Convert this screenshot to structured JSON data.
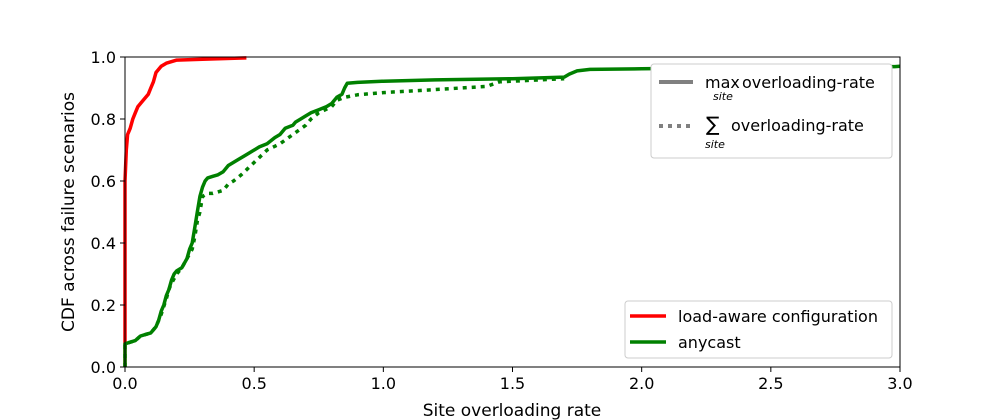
{
  "chart_data": {
    "type": "line",
    "title": "",
    "xlabel": "Site overloading rate",
    "ylabel": "CDF across failure scenarios",
    "xlim": [
      0.0,
      3.0
    ],
    "ylim": [
      0.0,
      1.0
    ],
    "xticks": [
      0.0,
      0.5,
      1.0,
      1.5,
      2.0,
      2.5,
      3.0
    ],
    "yticks": [
      0.0,
      0.2,
      0.4,
      0.6,
      0.8,
      1.0
    ],
    "xtick_labels": [
      "0.0",
      "0.5",
      "1.0",
      "1.5",
      "2.0",
      "2.5",
      "3.0"
    ],
    "ytick_labels": [
      "0.0",
      "0.2",
      "0.4",
      "0.6",
      "0.8",
      "1.0"
    ],
    "grid": false,
    "series": [
      {
        "name": "load-aware configuration",
        "color": "#ff0000",
        "style": "solid",
        "x": [
          0.0,
          0.0,
          0.005,
          0.008,
          0.01,
          0.015,
          0.02,
          0.03,
          0.04,
          0.05,
          0.06,
          0.07,
          0.09,
          0.1,
          0.11,
          0.12,
          0.13,
          0.14,
          0.16,
          0.2,
          0.3,
          0.47
        ],
        "y": [
          0.0,
          0.6,
          0.7,
          0.73,
          0.75,
          0.76,
          0.77,
          0.8,
          0.82,
          0.84,
          0.85,
          0.86,
          0.88,
          0.9,
          0.92,
          0.95,
          0.96,
          0.97,
          0.98,
          0.99,
          0.993,
          0.997
        ]
      },
      {
        "name": "anycast",
        "color": "#008000",
        "style": "solid",
        "x": [
          0.0,
          0.0,
          0.02,
          0.04,
          0.06,
          0.08,
          0.1,
          0.12,
          0.13,
          0.14,
          0.15,
          0.16,
          0.17,
          0.18,
          0.19,
          0.2,
          0.22,
          0.24,
          0.25,
          0.26,
          0.27,
          0.28,
          0.29,
          0.3,
          0.31,
          0.32,
          0.34,
          0.36,
          0.38,
          0.4,
          0.42,
          0.44,
          0.46,
          0.48,
          0.5,
          0.52,
          0.55,
          0.58,
          0.6,
          0.62,
          0.65,
          0.66,
          0.68,
          0.7,
          0.72,
          0.75,
          0.78,
          0.8,
          0.82,
          0.84,
          0.85,
          0.86,
          0.9,
          1.0,
          1.2,
          1.5,
          1.7,
          1.72,
          1.75,
          1.8,
          2.0,
          2.3,
          2.6,
          2.9,
          2.98,
          3.0
        ],
        "y": [
          0.0,
          0.075,
          0.08,
          0.085,
          0.1,
          0.105,
          0.11,
          0.13,
          0.15,
          0.18,
          0.2,
          0.23,
          0.25,
          0.28,
          0.3,
          0.31,
          0.32,
          0.35,
          0.38,
          0.4,
          0.45,
          0.5,
          0.55,
          0.58,
          0.6,
          0.61,
          0.615,
          0.62,
          0.63,
          0.65,
          0.66,
          0.67,
          0.68,
          0.69,
          0.7,
          0.71,
          0.72,
          0.74,
          0.75,
          0.77,
          0.78,
          0.79,
          0.8,
          0.81,
          0.82,
          0.83,
          0.84,
          0.85,
          0.87,
          0.88,
          0.9,
          0.915,
          0.918,
          0.922,
          0.926,
          0.93,
          0.935,
          0.945,
          0.955,
          0.96,
          0.962,
          0.965,
          0.967,
          0.968,
          0.969,
          0.97
        ]
      },
      {
        "name": "anycast (sum)",
        "color": "#008000",
        "style": "dotted",
        "x": [
          0.0,
          0.0,
          0.02,
          0.04,
          0.06,
          0.08,
          0.1,
          0.12,
          0.14,
          0.16,
          0.17,
          0.18,
          0.2,
          0.22,
          0.24,
          0.26,
          0.27,
          0.28,
          0.29,
          0.3,
          0.32,
          0.34,
          0.36,
          0.38,
          0.4,
          0.42,
          0.45,
          0.5,
          0.55,
          0.6,
          0.65,
          0.7,
          0.72,
          0.75,
          0.8,
          0.82,
          0.85,
          0.9,
          1.0,
          1.1,
          1.2,
          1.3,
          1.4,
          1.45,
          1.7
        ],
        "y": [
          0.0,
          0.075,
          0.08,
          0.085,
          0.1,
          0.105,
          0.11,
          0.13,
          0.17,
          0.22,
          0.25,
          0.27,
          0.3,
          0.32,
          0.35,
          0.38,
          0.42,
          0.47,
          0.5,
          0.55,
          0.56,
          0.56,
          0.565,
          0.57,
          0.59,
          0.6,
          0.62,
          0.66,
          0.7,
          0.72,
          0.75,
          0.78,
          0.8,
          0.82,
          0.84,
          0.86,
          0.87,
          0.878,
          0.885,
          0.89,
          0.895,
          0.9,
          0.905,
          0.92,
          0.93
        ]
      }
    ],
    "legend_style": {
      "position": "top-right",
      "entries": [
        {
          "style": "solid",
          "color": "#808080",
          "label": "overloading-rate",
          "prefix": "max",
          "sub": "site"
        },
        {
          "style": "dotted",
          "color": "#808080",
          "label": "overloading-rate",
          "prefix": "∑",
          "sub": "site"
        }
      ]
    },
    "legend_series": {
      "position": "lower-right",
      "entries": [
        {
          "color": "#ff0000",
          "label": "load-aware configuration"
        },
        {
          "color": "#008000",
          "label": "anycast"
        }
      ]
    }
  }
}
